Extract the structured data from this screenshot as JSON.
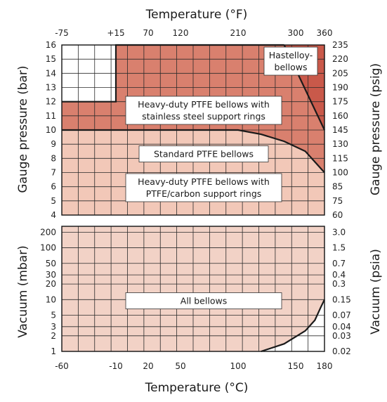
{
  "chart_data": {
    "type": "area",
    "colors": {
      "pressure_grid_bg": "#ffffff",
      "standard_ptfe": "#f2c8b8",
      "ss_ring": "#d9806e",
      "hastelloy": "#c9594a",
      "vacuum": "#f2d2c6",
      "grid_line": "#2a2a2a",
      "boundary": "#1a1a1a"
    },
    "x_axis_bottom": {
      "label": "Temperature (°C)",
      "ticks": [
        "-60",
        "-10",
        "20",
        "50",
        "100",
        "150",
        "180"
      ],
      "tick_values": [
        -60,
        -10,
        20,
        50,
        100,
        150,
        180
      ],
      "range": [
        -60,
        180
      ]
    },
    "x_axis_top": {
      "label": "Temperature (°F)",
      "ticks": [
        "-75",
        "+15",
        "70",
        "120",
        "210",
        "300",
        "360"
      ],
      "tick_values_celsius": [
        -60,
        -10,
        20,
        50,
        100,
        150,
        180
      ]
    },
    "pressure_panel": {
      "y_left_label": "Gauge pressure (bar)",
      "y_left_ticks": [
        "4",
        "5",
        "6",
        "7",
        "8",
        "9",
        "10",
        "11",
        "12",
        "13",
        "14",
        "15",
        "16"
      ],
      "y_range": [
        4,
        16
      ],
      "y_right_label": "Gauge pressure (psig)",
      "y_right_ticks": [
        "60",
        "75",
        "85",
        "100",
        "115",
        "130",
        "145",
        "160",
        "175",
        "190",
        "205",
        "220",
        "235"
      ],
      "regions": [
        {
          "label": "Standard PTFE bellows",
          "boundary_bar": [
            [
              -60,
              10
            ],
            [
              100,
              10
            ],
            [
              120,
              9.7
            ],
            [
              140,
              9.2
            ],
            [
              160,
              8.5
            ],
            [
              180,
              7
            ]
          ]
        },
        {
          "label": "Heavy-duty PTFE bellows with PTFE/carbon support rings",
          "same_as": "Standard PTFE bellows"
        },
        {
          "label": "Heavy-duty PTFE bellows with stainless steel support rings",
          "boundary_bar": [
            [
              -60,
              12
            ],
            [
              -10,
              12
            ],
            [
              -10,
              16
            ],
            [
              140,
              16
            ]
          ]
        },
        {
          "label": "Hastelloy-bellows",
          "boundary_bar": [
            [
              140,
              16
            ],
            [
              180,
              16
            ],
            [
              180,
              10
            ]
          ]
        }
      ],
      "labels": {
        "standard": "Standard PTFE bellows",
        "carbon_1": "Heavy-duty PTFE bellows with",
        "carbon_2": "PTFE/carbon support rings",
        "ss_1": "Heavy-duty PTFE bellows with",
        "ss_2": "stainless steel support rings",
        "hast_1": "Hastelloy-",
        "hast_2": "bellows"
      }
    },
    "vacuum_panel": {
      "y_left_label": "Vacuum (mbar)",
      "y_left_ticks": [
        "1",
        "2",
        "3",
        "5",
        "10",
        "20",
        "30",
        "50",
        "100",
        "200"
      ],
      "y_left_values": [
        1,
        2,
        3,
        5,
        10,
        20,
        30,
        50,
        100,
        200
      ],
      "y_right_label": "Vacuum (psia)",
      "y_right_ticks": [
        "0.02",
        "0.03",
        "0.04",
        "0.07",
        "0.15",
        "0.3",
        "0.4",
        "0.7",
        "1.5",
        "3.0"
      ],
      "y_scale": "log",
      "region_label": "All bellows",
      "boundary_mbar": [
        [
          120,
          1
        ],
        [
          140,
          1.4
        ],
        [
          160,
          2.5
        ],
        [
          170,
          4
        ],
        [
          176,
          7
        ],
        [
          180,
          10
        ]
      ]
    }
  }
}
